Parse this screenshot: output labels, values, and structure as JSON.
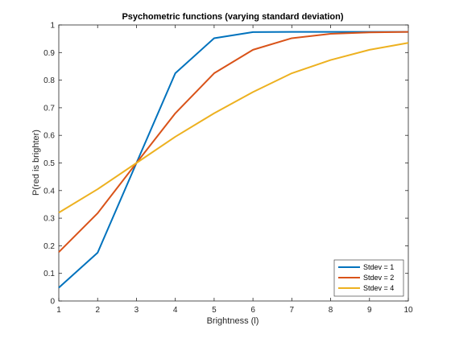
{
  "chart_data": {
    "type": "line",
    "title": "Psychometric functions (varying standard deviation)",
    "xlabel": "Brightness (l)",
    "ylabel": "P(red is brighter)",
    "xlim": [
      1,
      10
    ],
    "ylim": [
      0,
      1
    ],
    "xticks": [
      1,
      2,
      3,
      4,
      5,
      6,
      7,
      8,
      9,
      10
    ],
    "yticks": [
      0,
      0.1,
      0.2,
      0.3,
      0.4,
      0.5,
      0.6,
      0.7,
      0.8,
      0.9,
      1
    ],
    "x": [
      1,
      2,
      3,
      4,
      5,
      6,
      7,
      8,
      9,
      10
    ],
    "series": [
      {
        "name": "Stdev = 1",
        "color": "#0072BD",
        "values": [
          0.048,
          0.175,
          0.5,
          0.825,
          0.952,
          0.974,
          0.975,
          0.975,
          0.975,
          0.975
        ]
      },
      {
        "name": "Stdev = 2",
        "color": "#D95319",
        "values": [
          0.177,
          0.318,
          0.5,
          0.68,
          0.825,
          0.91,
          0.952,
          0.968,
          0.973,
          0.975
        ]
      },
      {
        "name": "Stdev = 4",
        "color": "#EDB120",
        "values": [
          0.32,
          0.405,
          0.5,
          0.595,
          0.68,
          0.757,
          0.825,
          0.873,
          0.91,
          0.935
        ]
      }
    ],
    "grid": false,
    "legend_position": "bottom-right"
  }
}
